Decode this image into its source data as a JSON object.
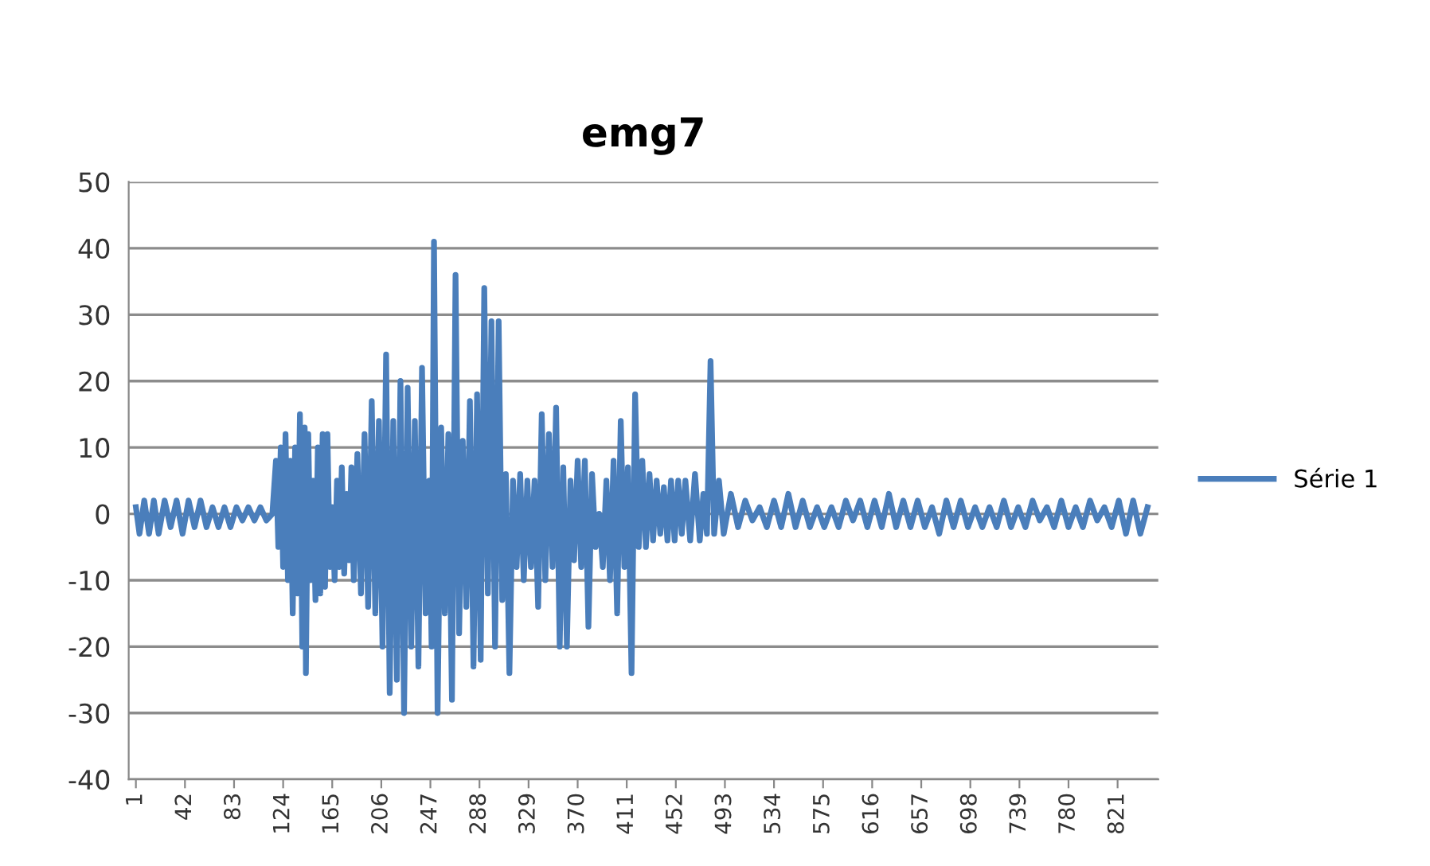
{
  "chart_data": {
    "type": "line",
    "title": "emg7",
    "x": [
      1,
      4,
      8,
      12,
      16,
      20,
      25,
      30,
      35,
      40,
      45,
      50,
      55,
      60,
      65,
      70,
      75,
      80,
      85,
      90,
      95,
      100,
      105,
      110,
      115,
      118,
      120,
      122,
      124,
      126,
      128,
      130,
      132,
      134,
      136,
      138,
      140,
      142,
      143,
      145,
      147,
      149,
      151,
      153,
      155,
      157,
      159,
      161,
      163,
      165,
      167,
      169,
      171,
      173,
      175,
      177,
      179,
      181,
      183,
      186,
      189,
      192,
      195,
      198,
      201,
      204,
      207,
      210,
      213,
      216,
      219,
      222,
      225,
      228,
      231,
      234,
      237,
      240,
      243,
      246,
      248,
      250,
      253,
      256,
      259,
      262,
      265,
      268,
      271,
      274,
      277,
      280,
      283,
      286,
      289,
      292,
      295,
      298,
      301,
      304,
      307,
      310,
      313,
      316,
      319,
      322,
      325,
      328,
      331,
      334,
      337,
      340,
      343,
      346,
      349,
      352,
      355,
      358,
      361,
      364,
      367,
      370,
      373,
      376,
      379,
      382,
      385,
      388,
      391,
      394,
      397,
      400,
      403,
      406,
      409,
      412,
      415,
      418,
      421,
      424,
      427,
      430,
      433,
      436,
      439,
      442,
      445,
      448,
      451,
      454,
      457,
      460,
      464,
      468,
      472,
      475,
      478,
      481,
      484,
      488,
      492,
      498,
      504,
      510,
      516,
      522,
      528,
      534,
      540,
      546,
      552,
      558,
      564,
      570,
      576,
      582,
      588,
      594,
      600,
      606,
      612,
      618,
      624,
      630,
      636,
      642,
      648,
      654,
      660,
      666,
      672,
      678,
      684,
      690,
      696,
      702,
      708,
      714,
      720,
      726,
      732,
      738,
      744,
      750,
      756,
      762,
      768,
      774,
      780,
      786,
      792,
      798,
      804,
      810,
      816,
      822,
      828,
      834,
      840,
      846
    ],
    "series": [
      {
        "name": "Série 1",
        "color": "#4a7ebb",
        "values": [
          1,
          -3,
          2,
          -3,
          2,
          -3,
          2,
          -2,
          2,
          -3,
          2,
          -2,
          2,
          -2,
          1,
          -2,
          1,
          -2,
          1,
          -1,
          1,
          -1,
          1,
          -1,
          0,
          8,
          -5,
          10,
          -8,
          12,
          -10,
          8,
          -15,
          10,
          -12,
          15,
          -20,
          13,
          -24,
          12,
          -10,
          5,
          -13,
          10,
          -12,
          12,
          -11,
          12,
          -8,
          1,
          -10,
          5,
          -8,
          7,
          -9,
          3,
          -7,
          7,
          -10,
          9,
          -12,
          12,
          -14,
          17,
          -15,
          14,
          -20,
          24,
          -27,
          14,
          -25,
          20,
          -30,
          19,
          -20,
          14,
          -23,
          22,
          -15,
          5,
          -20,
          41,
          -30,
          13,
          -15,
          12,
          -28,
          36,
          -18,
          11,
          -14,
          17,
          -23,
          18,
          -22,
          34,
          -12,
          29,
          -20,
          29,
          -13,
          6,
          -24,
          5,
          -8,
          6,
          -10,
          5,
          -8,
          5,
          -14,
          15,
          -10,
          12,
          -8,
          16,
          -20,
          7,
          -20,
          5,
          -7,
          8,
          -8,
          8,
          -17,
          6,
          -5,
          0,
          -8,
          5,
          -10,
          8,
          -15,
          14,
          -8,
          7,
          -24,
          18,
          -5,
          8,
          -5,
          6,
          -4,
          5,
          -3,
          4,
          -4,
          5,
          -4,
          5,
          -3,
          5,
          -4,
          6,
          -4,
          3,
          -3,
          23,
          -3,
          5,
          -3,
          3,
          -2,
          2,
          -1,
          1,
          -2,
          2,
          -2,
          3,
          -2,
          2,
          -2,
          1,
          -2,
          1,
          -2,
          2,
          -1,
          2,
          -2,
          2,
          -2,
          3,
          -2,
          2,
          -2,
          2,
          -2,
          1,
          -3,
          2,
          -2,
          2,
          -2,
          1,
          -2,
          1,
          -2,
          2,
          -2,
          1,
          -2,
          2,
          -1,
          1,
          -2,
          2,
          -2,
          1,
          -2,
          2,
          -1,
          1,
          -2,
          2,
          -3,
          2,
          -3,
          1
        ]
      }
    ],
    "xlim": [
      -5,
      855
    ],
    "xticks": [
      1,
      42,
      83,
      124,
      165,
      206,
      247,
      288,
      329,
      370,
      411,
      452,
      493,
      534,
      575,
      616,
      657,
      698,
      739,
      780,
      821
    ],
    "ylim": [
      -40,
      50
    ],
    "yticks": [
      -40,
      -30,
      -20,
      -10,
      0,
      10,
      20,
      30,
      40,
      50
    ],
    "grid": "y",
    "legend": "right",
    "marker": "none",
    "line_style": "solid"
  }
}
